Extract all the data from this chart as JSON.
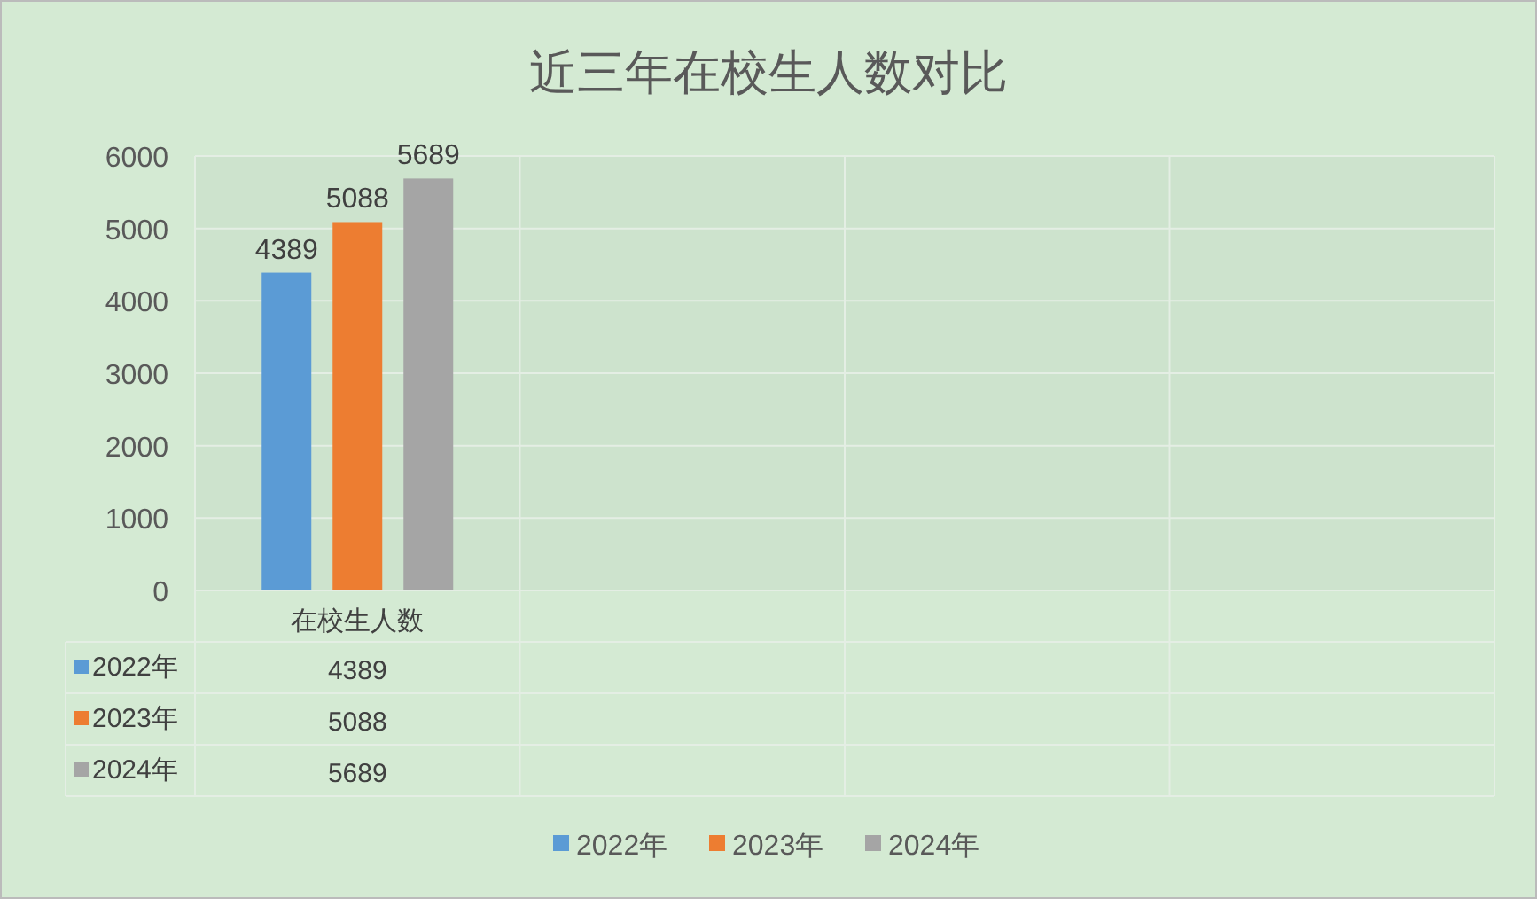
{
  "chart_data": {
    "type": "bar",
    "title": "近三年在校生人数对比",
    "categories": [
      "在校生人数",
      null,
      null,
      null
    ],
    "series": [
      {
        "name": "2022年",
        "color": "#5b9bd5",
        "values": [
          4389,
          null,
          null,
          null
        ]
      },
      {
        "name": "2023年",
        "color": "#ed7d31",
        "values": [
          5088,
          null,
          null,
          null
        ]
      },
      {
        "name": "2024年",
        "color": "#a5a5a5",
        "values": [
          5689,
          null,
          null,
          null
        ]
      }
    ],
    "annotations": [
      "4389",
      "5088",
      "5689"
    ],
    "ylim": [
      0,
      6000
    ],
    "yticks": [
      0,
      1000,
      2000,
      3000,
      4000,
      5000,
      6000
    ],
    "grid": "y",
    "legend": "bottom",
    "data_labels": true
  }
}
